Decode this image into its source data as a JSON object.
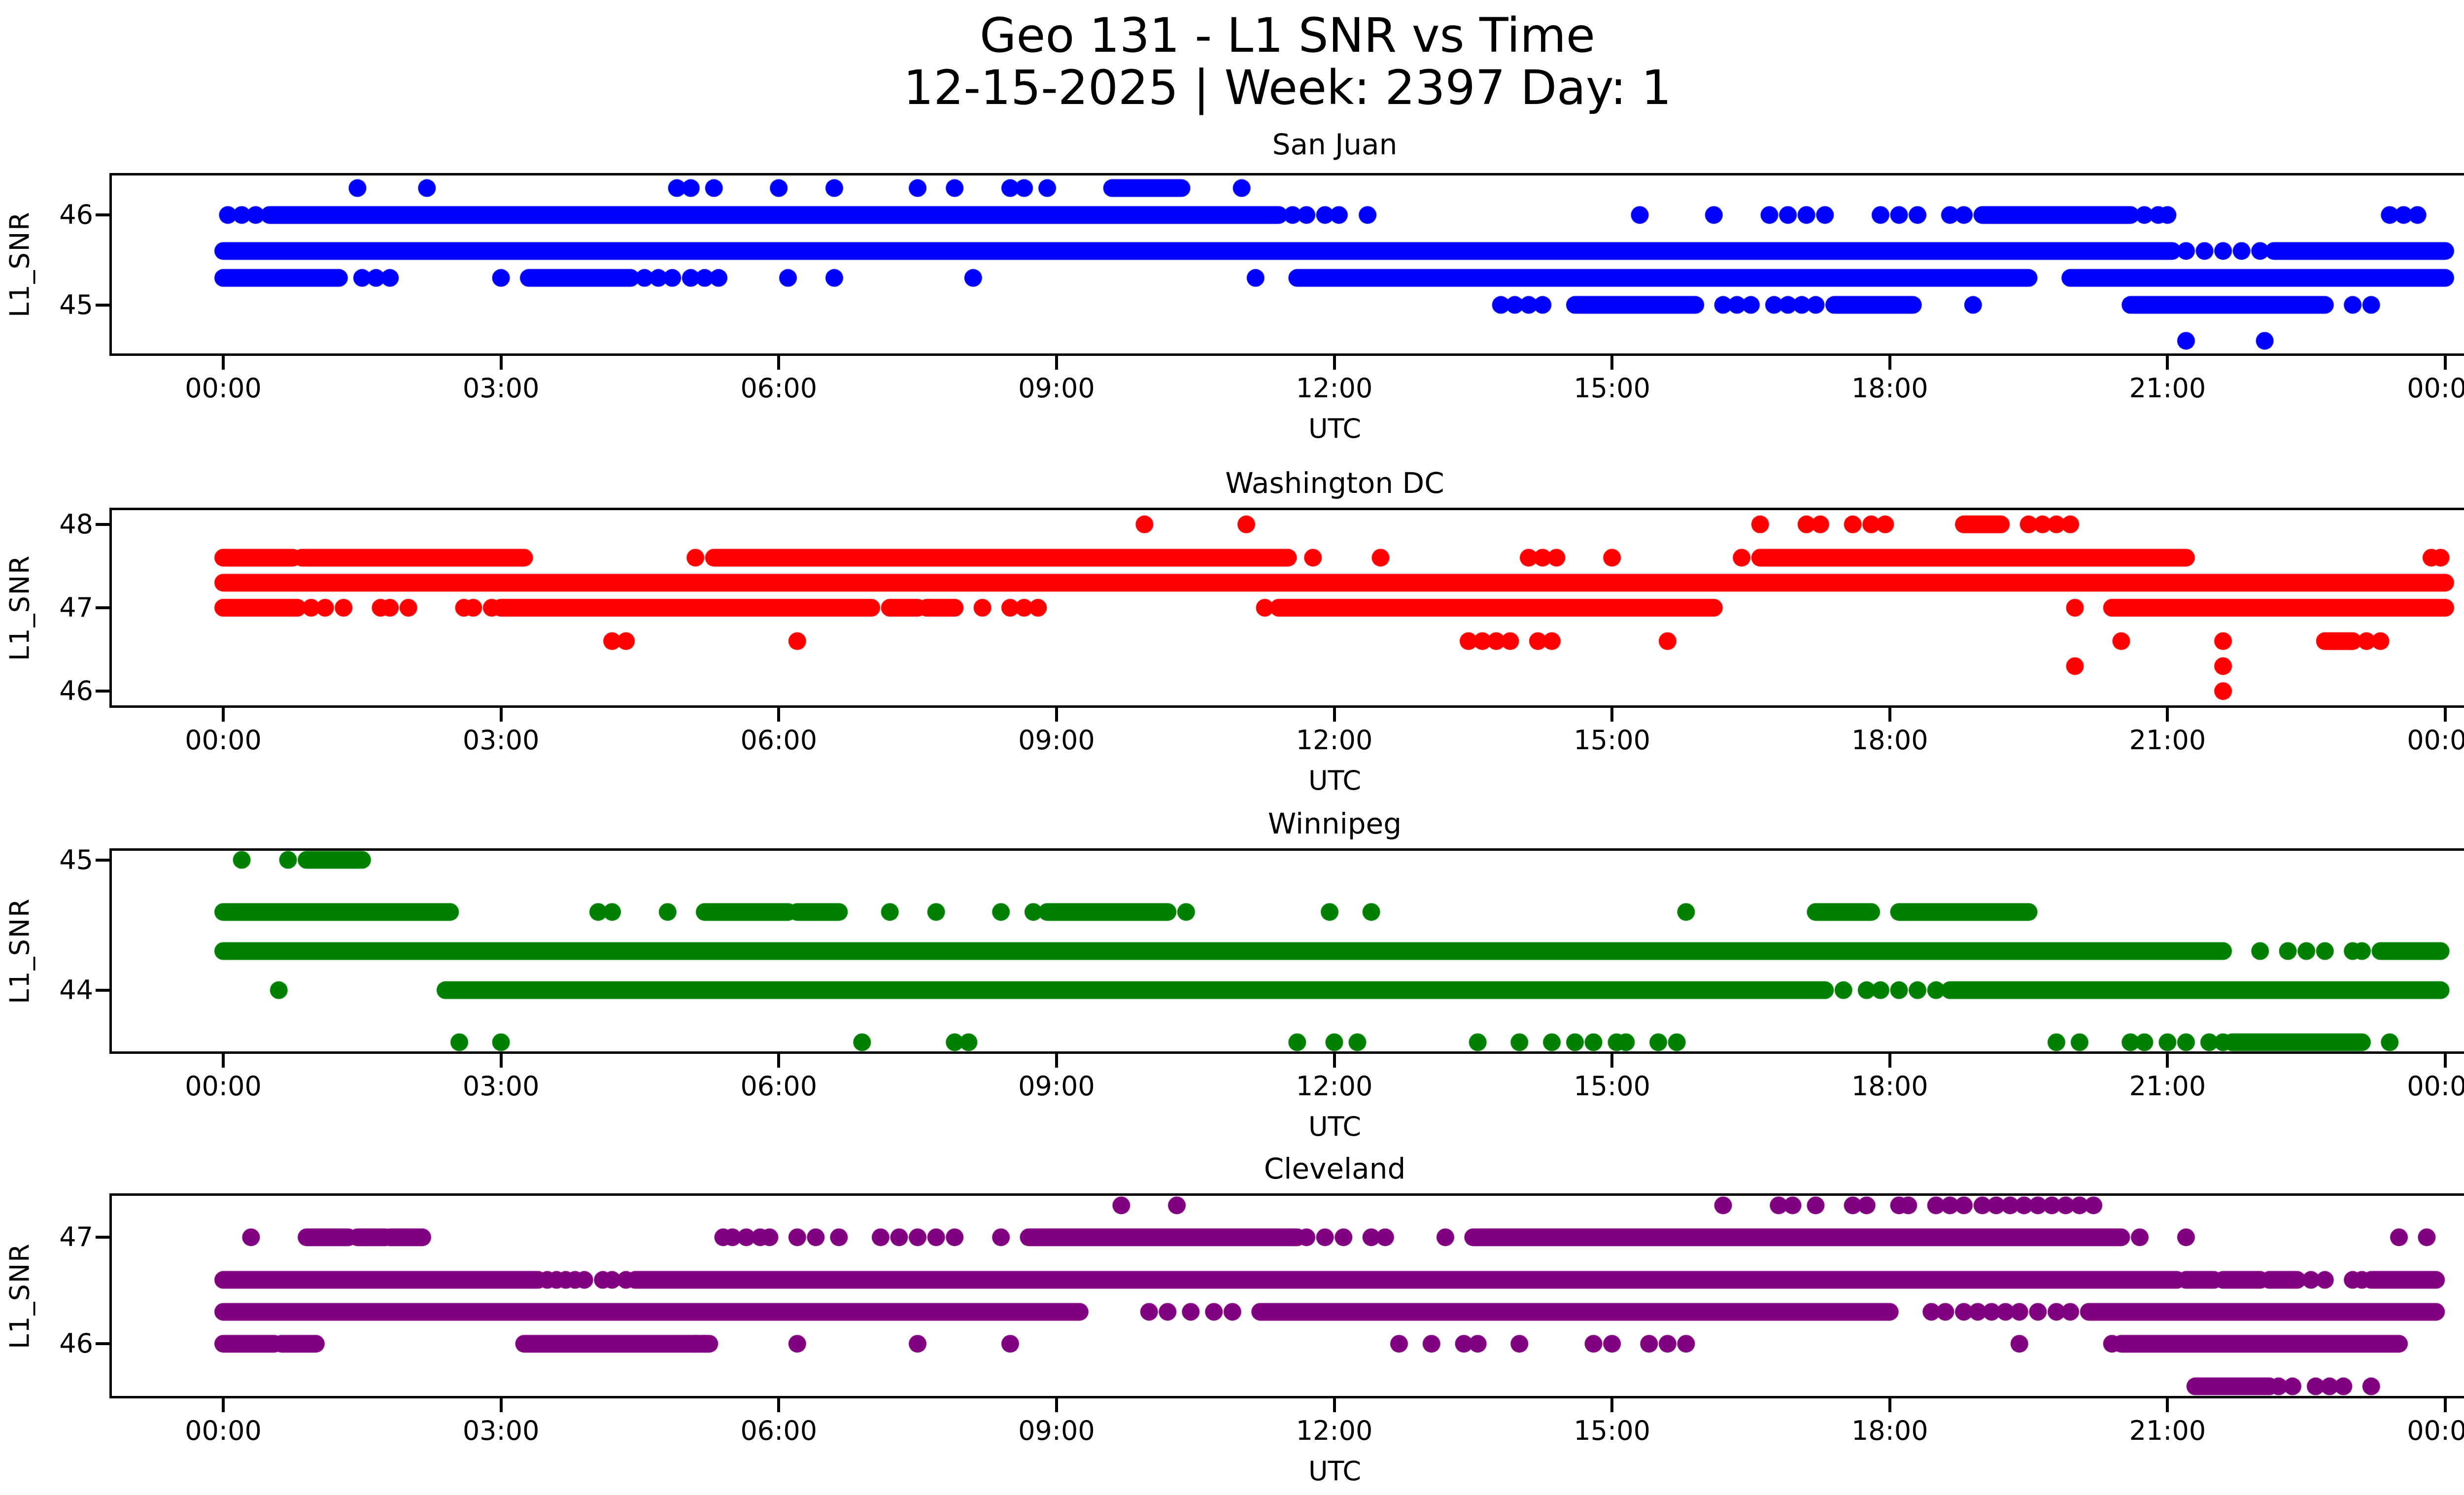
{
  "suptitle": {
    "line1": "Geo 131 - L1 SNR vs Time",
    "line2": "12-15-2025 | Week: 2397 Day: 1"
  },
  "axes": {
    "xlabel": "UTC",
    "ylabel": "L1_SNR",
    "x_tick_hours": [
      0,
      3,
      6,
      9,
      12,
      15,
      18,
      21,
      24
    ],
    "x_tick_labels": [
      "00:00",
      "03:00",
      "06:00",
      "09:00",
      "12:00",
      "15:00",
      "18:00",
      "21:00",
      "00:00"
    ]
  },
  "chart_data": [
    {
      "type": "scatter",
      "title": "San Juan",
      "color": "#0000ff",
      "xlabel": "UTC",
      "ylabel": "L1_SNR",
      "x_range_hours": [
        0,
        24
      ],
      "ylim": [
        44.46,
        46.44
      ],
      "yticks": [
        {
          "label": "46",
          "value": 46
        },
        {
          "label": "45",
          "value": 45
        }
      ],
      "bands": [
        {
          "v": 46.3,
          "segments": [
            [
              9.6,
              10.35
            ]
          ],
          "points": [
            1.45,
            2.2,
            4.9,
            5.05,
            5.3,
            6.0,
            6.6,
            7.5,
            7.9,
            8.5,
            8.65,
            8.9,
            11.0
          ]
        },
        {
          "v": 46.0,
          "segments": [
            [
              0.5,
              11.4
            ],
            [
              19.0,
              20.6
            ]
          ],
          "points": [
            0.05,
            0.2,
            0.35,
            11.55,
            11.7,
            11.9,
            12.05,
            12.36,
            15.3,
            16.1,
            16.7,
            16.9,
            17.1,
            17.3,
            17.9,
            18.1,
            18.3,
            18.65,
            18.8,
            20.75,
            20.9,
            21.0,
            23.4,
            23.55,
            23.7
          ]
        },
        {
          "v": 45.6,
          "segments": [
            [
              0.0,
              21.05
            ],
            [
              22.15,
              24.0
            ]
          ],
          "points": [
            21.2,
            21.4,
            21.6,
            21.8,
            22.0
          ]
        },
        {
          "v": 45.3,
          "segments": [
            [
              0.0,
              1.25
            ],
            [
              3.3,
              4.4
            ],
            [
              11.6,
              19.5
            ],
            [
              19.95,
              24.0
            ]
          ],
          "points": [
            1.5,
            1.65,
            1.8,
            3.0,
            4.55,
            4.7,
            4.85,
            5.05,
            5.2,
            5.35,
            6.1,
            6.6,
            8.1,
            11.15
          ]
        },
        {
          "v": 45.0,
          "segments": [
            [
              14.6,
              15.9
            ],
            [
              17.4,
              18.25
            ],
            [
              20.6,
              22.7
            ]
          ],
          "points": [
            13.8,
            13.95,
            14.1,
            14.25,
            16.2,
            16.35,
            16.5,
            16.75,
            16.9,
            17.05,
            17.2,
            18.9,
            23.0,
            23.2
          ]
        },
        {
          "v": 44.6,
          "segments": [],
          "points": [
            21.2,
            22.05
          ]
        }
      ]
    },
    {
      "type": "scatter",
      "title": "Washington DC",
      "color": "#ff0000",
      "xlabel": "UTC",
      "ylabel": "L1_SNR",
      "x_range_hours": [
        0,
        24
      ],
      "ylim": [
        45.83,
        48.17
      ],
      "yticks": [
        {
          "label": "48",
          "value": 48
        },
        {
          "label": "47",
          "value": 47
        },
        {
          "label": "46",
          "value": 46
        }
      ],
      "bands": [
        {
          "v": 48.0,
          "segments": [
            [
              18.8,
              19.2
            ]
          ],
          "points": [
            9.95,
            11.05,
            16.6,
            17.1,
            17.25,
            17.6,
            17.8,
            17.95,
            19.5,
            19.65,
            19.8,
            19.95
          ]
        },
        {
          "v": 47.6,
          "segments": [
            [
              0.0,
              0.75
            ],
            [
              0.85,
              3.25
            ],
            [
              5.3,
              11.5
            ],
            [
              16.6,
              21.2
            ]
          ],
          "points": [
            5.1,
            11.77,
            12.5,
            14.1,
            14.25,
            14.4,
            15.0,
            16.4,
            23.85,
            23.95
          ]
        },
        {
          "v": 47.3,
          "segments": [
            [
              0.0,
              24.0
            ]
          ],
          "points": []
        },
        {
          "v": 47.0,
          "segments": [
            [
              0.0,
              0.8
            ],
            [
              3.0,
              7.0
            ],
            [
              7.2,
              7.5
            ],
            [
              7.6,
              7.9
            ],
            [
              11.4,
              16.1
            ],
            [
              20.4,
              24.0
            ]
          ],
          "points": [
            0.95,
            1.1,
            1.3,
            1.7,
            1.8,
            2.0,
            2.6,
            2.7,
            2.9,
            8.2,
            8.5,
            8.65,
            8.8,
            11.25,
            20.0
          ]
        },
        {
          "v": 46.6,
          "segments": [
            [
              22.7,
              23.0
            ]
          ],
          "points": [
            4.2,
            4.35,
            6.2,
            13.45,
            13.6,
            13.75,
            13.9,
            14.2,
            14.35,
            15.6,
            20.5,
            21.6,
            23.15,
            23.3
          ]
        },
        {
          "v": 46.3,
          "segments": [],
          "points": [
            20.0,
            21.6
          ]
        },
        {
          "v": 46.0,
          "segments": [],
          "points": [
            21.6
          ]
        }
      ]
    },
    {
      "type": "scatter",
      "title": "Winnipeg",
      "color": "#008000",
      "xlabel": "UTC",
      "ylabel": "L1_SNR",
      "x_range_hours": [
        0,
        24
      ],
      "ylim": [
        43.53,
        45.07
      ],
      "yticks": [
        {
          "label": "45",
          "value": 45
        },
        {
          "label": "44",
          "value": 44
        }
      ],
      "bands": [
        {
          "v": 45.0,
          "segments": [
            [
              0.9,
              1.5
            ]
          ],
          "points": [
            0.2,
            0.7
          ]
        },
        {
          "v": 44.6,
          "segments": [
            [
              0.0,
              2.45
            ],
            [
              5.2,
              6.1
            ],
            [
              6.2,
              6.65
            ],
            [
              8.9,
              10.2
            ],
            [
              17.2,
              17.8
            ],
            [
              18.1,
              19.5
            ]
          ],
          "points": [
            4.05,
            4.2,
            4.8,
            7.2,
            7.7,
            8.4,
            8.75,
            10.4,
            11.95,
            12.4,
            15.8
          ]
        },
        {
          "v": 44.3,
          "segments": [
            [
              0.0,
              21.6
            ],
            [
              23.3,
              23.95
            ]
          ],
          "points": [
            22.0,
            22.3,
            22.5,
            22.7,
            23.0,
            23.1
          ]
        },
        {
          "v": 44.0,
          "segments": [
            [
              2.4,
              17.3
            ],
            [
              18.65,
              23.95
            ]
          ],
          "points": [
            0.6,
            17.5,
            17.75,
            17.9,
            18.1,
            18.3,
            18.5
          ]
        },
        {
          "v": 43.6,
          "segments": [
            [
              21.7,
              23.1
            ]
          ],
          "points": [
            2.55,
            3.0,
            6.9,
            7.9,
            8.05,
            11.6,
            12.0,
            12.25,
            13.55,
            14.0,
            14.35,
            14.6,
            14.8,
            15.05,
            15.15,
            15.5,
            15.7,
            19.8,
            20.05,
            20.6,
            20.75,
            21.0,
            21.2,
            21.45,
            21.6,
            23.4
          ]
        }
      ]
    },
    {
      "type": "scatter",
      "title": "Cleveland",
      "color": "#800080",
      "xlabel": "UTC",
      "ylabel": "L1_SNR",
      "x_range_hours": [
        0,
        24
      ],
      "ylim": [
        45.51,
        47.39
      ],
      "yticks": [
        {
          "label": "47",
          "value": 47
        },
        {
          "label": "46",
          "value": 46
        }
      ],
      "bands": [
        {
          "v": 47.3,
          "segments": [],
          "points": [
            9.7,
            10.3,
            16.2,
            16.8,
            16.95,
            17.2,
            17.6,
            17.75,
            18.1,
            18.2,
            18.5,
            18.65,
            18.8,
            19.0,
            19.15,
            19.3,
            19.45,
            19.6,
            19.75,
            19.9,
            20.05,
            20.2
          ]
        },
        {
          "v": 47.0,
          "segments": [
            [
              0.9,
              1.35
            ],
            [
              1.45,
              1.75
            ],
            [
              1.8,
              2.15
            ],
            [
              8.7,
              11.6
            ],
            [
              13.5,
              20.5
            ]
          ],
          "points": [
            0.3,
            5.4,
            5.5,
            5.65,
            5.8,
            5.9,
            6.2,
            6.4,
            6.65,
            7.1,
            7.3,
            7.5,
            7.7,
            7.9,
            8.4,
            11.7,
            11.9,
            12.1,
            12.4,
            12.55,
            13.2,
            20.7,
            21.2,
            23.5,
            23.8
          ]
        },
        {
          "v": 46.6,
          "segments": [
            [
              0.0,
              3.4
            ],
            [
              4.45,
              21.1
            ],
            [
              21.2,
              21.5
            ],
            [
              21.6,
              22.0
            ],
            [
              22.1,
              22.4
            ],
            [
              23.2,
              23.9
            ]
          ],
          "points": [
            3.5,
            3.6,
            3.7,
            3.8,
            3.9,
            4.1,
            4.2,
            4.35,
            22.55,
            22.7,
            23.0,
            23.1
          ]
        },
        {
          "v": 46.3,
          "segments": [
            [
              0.0,
              9.25
            ],
            [
              11.2,
              18.0
            ],
            [
              20.15,
              23.9
            ]
          ],
          "points": [
            10.0,
            10.2,
            10.45,
            10.7,
            10.9,
            18.45,
            18.6,
            18.8,
            18.95,
            19.1,
            19.25,
            19.4,
            19.6,
            19.8,
            19.95
          ]
        },
        {
          "v": 46.0,
          "segments": [
            [
              0.0,
              0.55
            ],
            [
              0.63,
              1.0
            ],
            [
              3.25,
              5.25
            ],
            [
              20.5,
              23.5
            ]
          ],
          "points": [
            5.1,
            5.2,
            6.2,
            7.5,
            8.5,
            12.7,
            13.05,
            13.4,
            13.55,
            14.0,
            14.8,
            15.0,
            15.4,
            15.6,
            15.8,
            19.4,
            20.4
          ]
        },
        {
          "v": 45.6,
          "segments": [
            [
              21.3,
              22.1
            ]
          ],
          "points": [
            22.2,
            22.35,
            22.6,
            22.75,
            22.9,
            23.2
          ]
        }
      ]
    }
  ]
}
